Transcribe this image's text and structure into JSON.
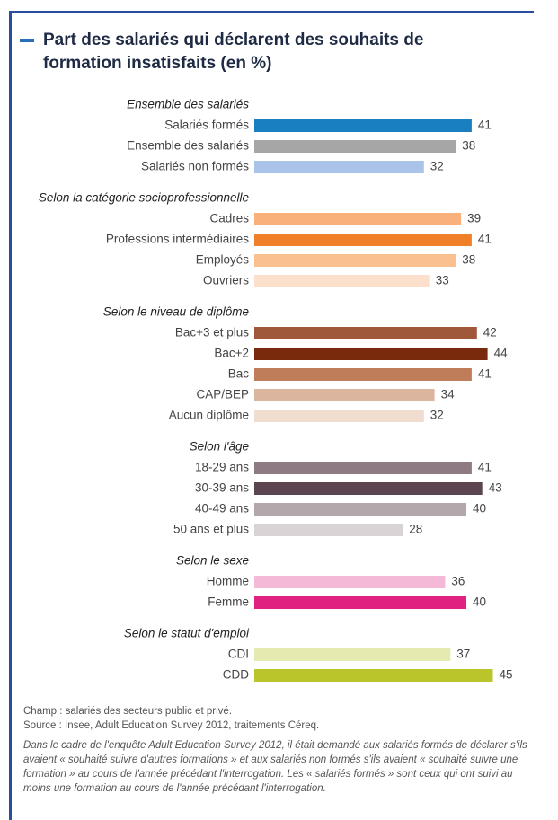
{
  "chart_data": {
    "type": "bar",
    "title": "Part des salariés qui déclarent des souhaits de formation insatisfaits (en %)",
    "groups": [
      {
        "name": "Ensemble des salariés",
        "categories": [
          "Salariés formés",
          "Ensemble des salariés",
          "Salariés non formés"
        ],
        "values": [
          41,
          38,
          32
        ],
        "colors": [
          "#1a7fc1",
          "#a6a6a6",
          "#a9c4e8"
        ]
      },
      {
        "name": "Selon la catégorie socioprofessionnelle",
        "categories": [
          "Cadres",
          "Professions intermédiaires",
          "Employés",
          "Ouvriers"
        ],
        "values": [
          39,
          41,
          38,
          33
        ],
        "colors": [
          "#f9b07a",
          "#f07f2a",
          "#fbc08f",
          "#fde0cc"
        ]
      },
      {
        "name": "Selon le niveau de diplôme",
        "categories": [
          "Bac+3 et plus",
          "Bac+2",
          "Bac",
          "CAP/BEP",
          "Aucun diplôme"
        ],
        "values": [
          42,
          44,
          41,
          34,
          32
        ],
        "colors": [
          "#a0583a",
          "#7a2a0c",
          "#c07d5a",
          "#dbb59e",
          "#f0ddd0"
        ]
      },
      {
        "name": "Selon l'âge",
        "categories": [
          "18-29 ans",
          "30-39 ans",
          "40-49 ans",
          "50 ans et plus"
        ],
        "values": [
          41,
          43,
          40,
          28
        ],
        "colors": [
          "#8e7a82",
          "#5a4550",
          "#b3a7ac",
          "#dad3d6"
        ]
      },
      {
        "name": "Selon le sexe",
        "categories": [
          "Homme",
          "Femme"
        ],
        "values": [
          36,
          40
        ],
        "colors": [
          "#f4b9d6",
          "#e0217f"
        ]
      },
      {
        "name": "Selon le statut d'emploi",
        "categories": [
          "CDI",
          "CDD"
        ],
        "values": [
          37,
          45
        ],
        "colors": [
          "#e5ebb0",
          "#b9c52b"
        ]
      }
    ],
    "notes": [
      "Champ : salariés des secteurs public et privé.",
      "Source : Insee, Adult Education Survey 2012, traitements Céreq."
    ],
    "comment": "Dans le cadre de l'enquête Adult Education Survey 2012, il était demandé aux salariés formés de déclarer s'ils avaient « souhaité suivre d'autres formations » et aux salariés non formés s'ils avaient « souhaité suivre une formation » au cours de l'année précédant l'interrogation. Les « salariés formés » sont ceux qui ont suivi au moins une formation au cours de l'année précédant l'interrogation."
  }
}
